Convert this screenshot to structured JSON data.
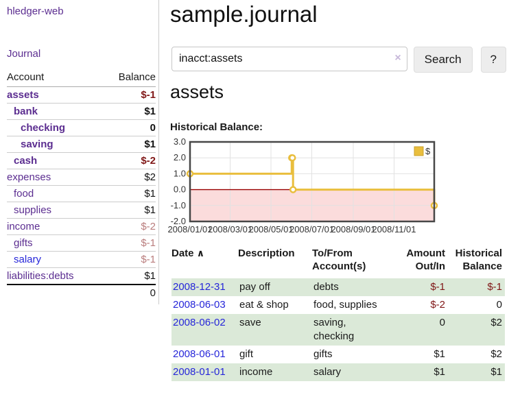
{
  "colors": {
    "accent_purple": "#5b2d90",
    "link_blue": "#2626d9",
    "negative_strong": "#801717",
    "negative_soft": "#b97c7c",
    "stripe_green": "#dbe9d8",
    "series_gold": "#e9be3d",
    "negative_zone_pink": "#fbdcdc",
    "zero_line_red": "#990000"
  },
  "sidebar": {
    "brand": "hledger-web",
    "journal_link": "Journal",
    "accounts_table": {
      "headers": {
        "account": "Account",
        "balance": "Balance"
      },
      "rows": [
        {
          "name": "assets",
          "indent": 0,
          "bold": true,
          "balance": "$-1",
          "balance_style": "neg-strong",
          "link_style": "purple"
        },
        {
          "name": "bank",
          "indent": 1,
          "bold": true,
          "balance": "$1",
          "balance_style": "pos-strong",
          "link_style": "purple"
        },
        {
          "name": "checking",
          "indent": 2,
          "bold": true,
          "balance": "0",
          "balance_style": "pos-strong",
          "link_style": "purple"
        },
        {
          "name": "saving",
          "indent": 2,
          "bold": true,
          "balance": "$1",
          "balance_style": "pos-strong",
          "link_style": "purple"
        },
        {
          "name": "cash",
          "indent": 1,
          "bold": true,
          "balance": "$-2",
          "balance_style": "neg-strong",
          "link_style": "purple"
        },
        {
          "name": "expenses",
          "indent": 0,
          "bold": false,
          "balance": "$2",
          "balance_style": "pos",
          "link_style": "purple"
        },
        {
          "name": "food",
          "indent": 1,
          "bold": false,
          "balance": "$1",
          "balance_style": "pos",
          "link_style": "purple"
        },
        {
          "name": "supplies",
          "indent": 1,
          "bold": false,
          "balance": "$1",
          "balance_style": "pos",
          "link_style": "purple"
        },
        {
          "name": "income",
          "indent": 0,
          "bold": false,
          "balance": "$-2",
          "balance_style": "neg-soft",
          "link_style": "purple"
        },
        {
          "name": "gifts",
          "indent": 1,
          "bold": false,
          "balance": "$-1",
          "balance_style": "neg-soft",
          "link_style": "purple"
        },
        {
          "name": "salary",
          "indent": 1,
          "bold": false,
          "balance": "$-1",
          "balance_style": "neg-soft",
          "link_style": "blue"
        },
        {
          "name": "liabilities:debts",
          "indent": 0,
          "bold": false,
          "balance": "$1",
          "balance_style": "pos",
          "link_style": "purple"
        }
      ],
      "total": "0"
    }
  },
  "main": {
    "title": "sample.journal",
    "search": {
      "value": "inacct:assets",
      "clear_icon": "×",
      "search_button": "Search",
      "help_button": "?"
    },
    "section_title": "assets",
    "chart_label": "Historical Balance:"
  },
  "chart_data": {
    "type": "line",
    "style": "step",
    "title": "Historical Balance",
    "series": [
      {
        "name": "$",
        "color": "#e9be3d",
        "points": [
          [
            "2008-01-01",
            1
          ],
          [
            "2008-06-01",
            2
          ],
          [
            "2008-06-02",
            2
          ],
          [
            "2008-06-03",
            0
          ],
          [
            "2008-12-31",
            -1
          ]
        ]
      }
    ],
    "xlim": [
      "2008-01-01",
      "2008-12-31"
    ],
    "ylim": [
      -2,
      3
    ],
    "yticks": [
      3,
      2,
      1,
      0,
      -1,
      -2
    ],
    "ytick_labels": [
      "3.0",
      "2.0",
      "1.0",
      "0.0",
      "-1.0",
      "-2.0"
    ],
    "xticks": [
      "2008-01-01",
      "2008-03-01",
      "2008-05-01",
      "2008-07-01",
      "2008-09-01",
      "2008-11-01"
    ],
    "xtick_labels": [
      "2008/01/01",
      "2008/03/01",
      "2008/05/01",
      "2008/07/01",
      "2008/09/01",
      "2008/11/01"
    ],
    "legend": {
      "label": "$",
      "position": "top-right"
    },
    "negative_region": {
      "below": 0
    },
    "grid": true
  },
  "register": {
    "headers": [
      {
        "label": "Date",
        "sort_icon": "∧"
      },
      {
        "label": "Description"
      },
      {
        "label": "To/From Account(s)"
      },
      {
        "label": "Amount Out/In"
      },
      {
        "label": "Historical Balance"
      }
    ],
    "rows": [
      {
        "date": "2008-12-31",
        "description": "pay off",
        "accounts": "debts",
        "amount": "$-1",
        "amount_neg": true,
        "balance": "$-1",
        "balance_neg": true
      },
      {
        "date": "2008-06-03",
        "description": "eat & shop",
        "accounts": "food, supplies",
        "amount": "$-2",
        "amount_neg": true,
        "balance": "0",
        "balance_neg": false
      },
      {
        "date": "2008-06-02",
        "description": "save",
        "accounts": "saving, checking",
        "amount": "0",
        "amount_neg": false,
        "balance": "$2",
        "balance_neg": false
      },
      {
        "date": "2008-06-01",
        "description": "gift",
        "accounts": "gifts",
        "amount": "$1",
        "amount_neg": false,
        "balance": "$2",
        "balance_neg": false
      },
      {
        "date": "2008-01-01",
        "description": "income",
        "accounts": "salary",
        "amount": "$1",
        "amount_neg": false,
        "balance": "$1",
        "balance_neg": false
      }
    ]
  }
}
